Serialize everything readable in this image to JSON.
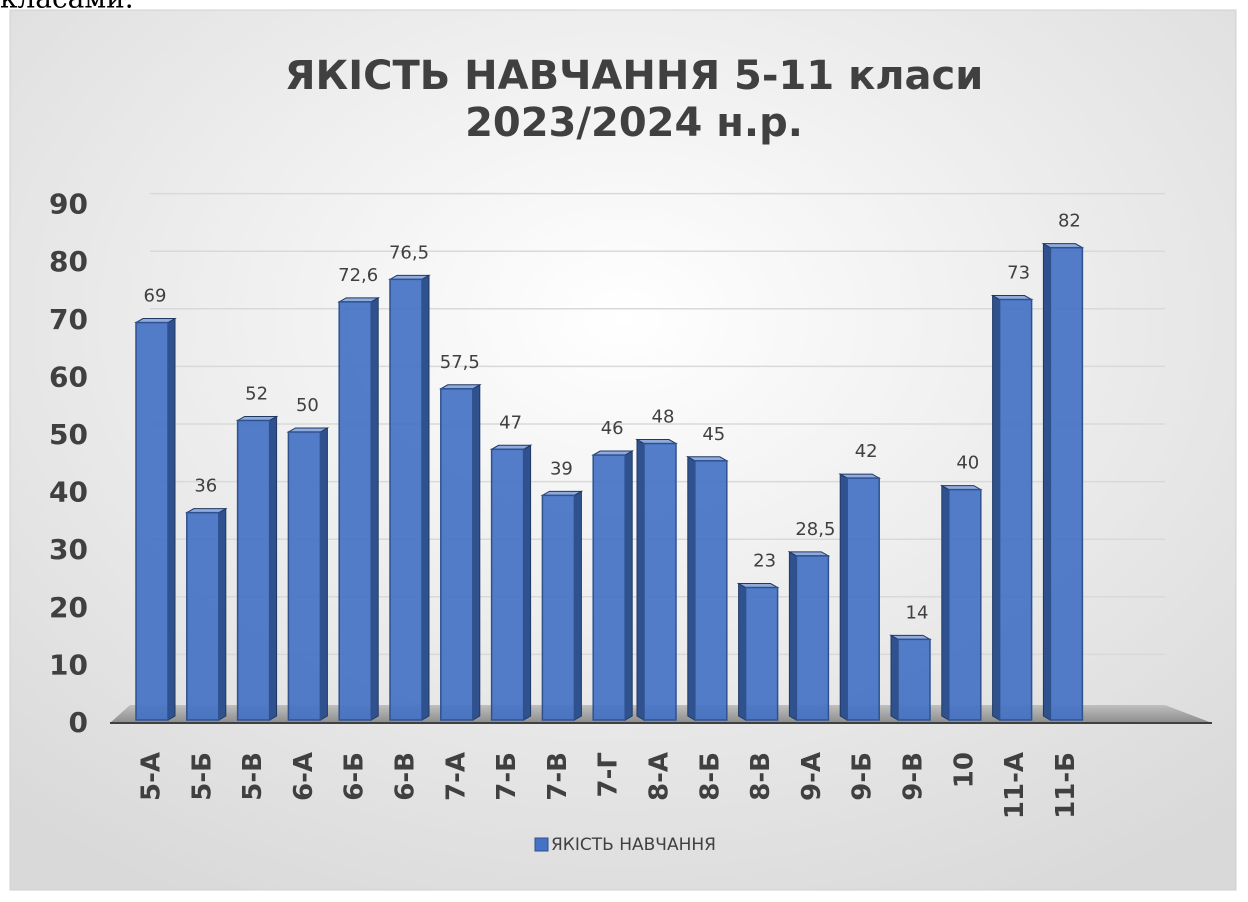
{
  "header_text": "класами.",
  "chart_data": {
    "type": "bar3d",
    "title": "ЯКІСТЬ НАВЧАННЯ 5-11 класи",
    "subtitle": "2023/2024 н.р.",
    "categories": [
      "5-А",
      "5-Б",
      "5-В",
      "6-А",
      "6-Б",
      "6-В",
      "7-А",
      "7-Б",
      "7-В",
      "7-Г",
      "8-А",
      "8-Б",
      "8-В",
      "9-А",
      "9-Б",
      "9-В",
      "10",
      "11-А",
      "11-Б"
    ],
    "series": [
      {
        "name": "ЯКІСТЬ НАВЧАННЯ",
        "color": "#4472c4",
        "values": [
          69,
          36,
          52,
          50,
          72.6,
          76.5,
          57.5,
          47,
          39,
          46,
          48,
          45,
          23,
          28.5,
          42,
          14,
          40,
          73,
          82
        ],
        "value_labels": [
          "69",
          "36",
          "52",
          "50",
          "72,6",
          "76,5",
          "57,5",
          "47",
          "39",
          "46",
          "48",
          "45",
          "23",
          "28,5",
          "42",
          "14",
          "40",
          "73",
          "82"
        ]
      }
    ],
    "ylim": [
      0,
      90
    ],
    "yticks": [
      0,
      10,
      20,
      30,
      40,
      50,
      60,
      70,
      80,
      90
    ],
    "grid": true,
    "legend": "bottom"
  }
}
